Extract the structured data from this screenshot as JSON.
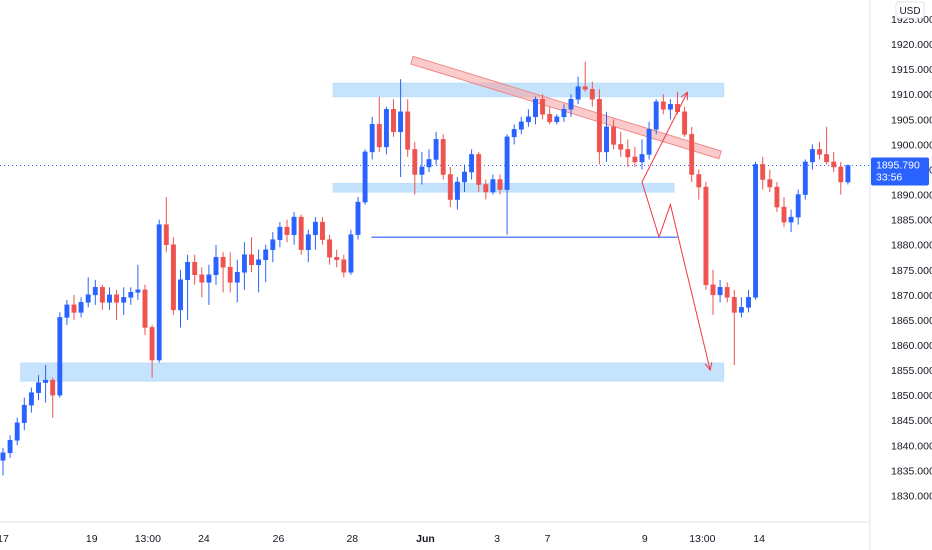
{
  "chart_data": {
    "type": "candlestick",
    "currency_label": "USD",
    "top_partial_label": "1925.000",
    "ylim": [
      1825.5,
      1926.8
    ],
    "price_ticks": [
      1830,
      1835,
      1840,
      1845,
      1850,
      1855,
      1860,
      1865,
      1870,
      1875,
      1880,
      1885,
      1890,
      1895,
      1900,
      1905,
      1910,
      1915,
      1920
    ],
    "price_tick_labels": [
      "1830.000",
      "1835.000",
      "1840.000",
      "1845.000",
      "1850.000",
      "1855.000",
      "1860.000",
      "1865.000",
      "1870.000",
      "1875.000",
      "1880.000",
      "1885.000",
      "1890.000",
      "1895.000",
      "1900.000",
      "1905.000",
      "1910.000",
      "1915.000",
      "1920.000"
    ],
    "x_ticks": [
      {
        "label": "17",
        "i": 0,
        "bold": false
      },
      {
        "label": "19",
        "i": 12.5,
        "bold": false
      },
      {
        "label": "13:00",
        "i": 20.4,
        "bold": false
      },
      {
        "label": "24",
        "i": 28.3,
        "bold": false
      },
      {
        "label": "26",
        "i": 38.8,
        "bold": false
      },
      {
        "label": "28",
        "i": 49.2,
        "bold": false
      },
      {
        "label": "Jun",
        "i": 59.5,
        "bold": true
      },
      {
        "label": "3",
        "i": 69.6,
        "bold": false
      },
      {
        "label": "7",
        "i": 76.7,
        "bold": false
      },
      {
        "label": "9",
        "i": 90.4,
        "bold": false
      },
      {
        "label": "13:00",
        "i": 98.5,
        "bold": false
      },
      {
        "label": "14",
        "i": 106.5,
        "bold": false
      }
    ],
    "current_price": {
      "value": 1895.79,
      "label": "1895.790",
      "countdown": "33:56"
    },
    "colors": {
      "up": "#2962ff",
      "down": "#ef5350",
      "zone": "#bbdefb",
      "trend": "#f7a1a1",
      "tag": "#2962ff",
      "arrow": "#f23645"
    },
    "candles": [
      [
        1837.0,
        1839.5,
        1834.0,
        1838.5
      ],
      [
        1838.5,
        1842.0,
        1837.5,
        1841.0
      ],
      [
        1841.0,
        1845.5,
        1840.0,
        1844.5
      ],
      [
        1844.5,
        1849.5,
        1843.0,
        1848.0
      ],
      [
        1848.0,
        1851.5,
        1846.5,
        1850.5
      ],
      [
        1850.5,
        1854.0,
        1849.0,
        1852.5
      ],
      [
        1852.5,
        1856.0,
        1848.5,
        1853.0
      ],
      [
        1853.0,
        1853.5,
        1845.5,
        1850.0
      ],
      [
        1850.0,
        1866.5,
        1849.5,
        1865.5
      ],
      [
        1865.5,
        1869.0,
        1864.0,
        1868.0
      ],
      [
        1868.0,
        1870.0,
        1865.0,
        1866.5
      ],
      [
        1866.5,
        1869.5,
        1865.5,
        1868.5
      ],
      [
        1868.5,
        1873.5,
        1867.5,
        1870.0
      ],
      [
        1870.0,
        1873.0,
        1868.0,
        1871.5
      ],
      [
        1871.5,
        1872.0,
        1867.0,
        1868.5
      ],
      [
        1868.5,
        1871.5,
        1867.0,
        1870.0
      ],
      [
        1870.0,
        1871.0,
        1865.0,
        1868.5
      ],
      [
        1868.5,
        1871.5,
        1866.0,
        1869.5
      ],
      [
        1869.5,
        1871.5,
        1868.0,
        1870.5
      ],
      [
        1870.5,
        1876.0,
        1869.0,
        1871.0
      ],
      [
        1871.0,
        1872.0,
        1862.0,
        1863.5
      ],
      [
        1863.5,
        1864.0,
        1853.5,
        1857.0
      ],
      [
        1857.0,
        1885.0,
        1856.5,
        1884.0
      ],
      [
        1884.0,
        1889.5,
        1878.5,
        1880.0
      ],
      [
        1880.0,
        1881.5,
        1866.0,
        1867.0
      ],
      [
        1867.0,
        1875.0,
        1863.5,
        1873.0
      ],
      [
        1873.0,
        1878.0,
        1865.0,
        1876.5
      ],
      [
        1876.5,
        1878.0,
        1872.0,
        1874.0
      ],
      [
        1874.0,
        1875.5,
        1869.5,
        1872.5
      ],
      [
        1872.5,
        1876.0,
        1868.0,
        1874.0
      ],
      [
        1874.0,
        1880.0,
        1872.0,
        1877.5
      ],
      [
        1877.5,
        1878.5,
        1870.5,
        1875.5
      ],
      [
        1875.5,
        1878.5,
        1870.5,
        1872.5
      ],
      [
        1872.5,
        1877.0,
        1868.5,
        1874.5
      ],
      [
        1874.5,
        1880.5,
        1871.0,
        1878.0
      ],
      [
        1878.0,
        1881.5,
        1874.5,
        1876.0
      ],
      [
        1876.0,
        1879.0,
        1870.5,
        1877.0
      ],
      [
        1877.0,
        1880.0,
        1872.5,
        1879.0
      ],
      [
        1879.0,
        1882.5,
        1876.5,
        1881.0
      ],
      [
        1881.0,
        1884.5,
        1879.5,
        1883.5
      ],
      [
        1883.5,
        1885.0,
        1880.5,
        1882.0
      ],
      [
        1882.0,
        1886.5,
        1880.0,
        1885.5
      ],
      [
        1885.5,
        1886.0,
        1878.0,
        1879.0
      ],
      [
        1879.0,
        1883.0,
        1876.5,
        1882.0
      ],
      [
        1882.0,
        1885.5,
        1879.0,
        1884.5
      ],
      [
        1884.5,
        1885.5,
        1880.0,
        1881.0
      ],
      [
        1881.0,
        1882.0,
        1876.0,
        1877.5
      ],
      [
        1877.5,
        1879.0,
        1875.5,
        1877.0
      ],
      [
        1877.0,
        1878.0,
        1873.5,
        1874.5
      ],
      [
        1874.5,
        1883.0,
        1874.0,
        1882.0
      ],
      [
        1882.0,
        1889.5,
        1881.0,
        1888.5
      ],
      [
        1888.5,
        1899.0,
        1888.0,
        1898.5
      ],
      [
        1898.5,
        1905.5,
        1897.0,
        1904.0
      ],
      [
        1904.0,
        1909.5,
        1898.5,
        1899.5
      ],
      [
        1899.5,
        1907.5,
        1898.0,
        1907.0
      ],
      [
        1907.0,
        1909.0,
        1901.5,
        1902.5
      ],
      [
        1902.5,
        1913.0,
        1893.5,
        1906.5
      ],
      [
        1906.5,
        1909.0,
        1897.5,
        1899.0
      ],
      [
        1899.0,
        1900.5,
        1890.0,
        1894.0
      ],
      [
        1894.0,
        1898.5,
        1892.0,
        1895.5
      ],
      [
        1895.5,
        1899.0,
        1894.5,
        1897.0
      ],
      [
        1897.0,
        1902.5,
        1896.0,
        1901.0
      ],
      [
        1901.0,
        1902.0,
        1893.0,
        1894.0
      ],
      [
        1894.0,
        1895.5,
        1887.5,
        1889.0
      ],
      [
        1889.0,
        1893.5,
        1887.0,
        1892.5
      ],
      [
        1892.5,
        1896.0,
        1890.5,
        1894.5
      ],
      [
        1894.5,
        1899.0,
        1893.0,
        1898.0
      ],
      [
        1898.0,
        1898.5,
        1890.5,
        1892.0
      ],
      [
        1892.0,
        1893.0,
        1889.0,
        1890.5
      ],
      [
        1890.5,
        1894.0,
        1890.0,
        1893.0
      ],
      [
        1893.0,
        1894.0,
        1890.0,
        1891.0
      ],
      [
        1891.0,
        1902.0,
        1882.0,
        1901.5
      ],
      [
        1901.5,
        1904.0,
        1900.0,
        1903.0
      ],
      [
        1903.0,
        1905.5,
        1902.0,
        1904.5
      ],
      [
        1904.5,
        1907.0,
        1903.5,
        1905.5
      ],
      [
        1905.5,
        1909.5,
        1904.0,
        1909.0
      ],
      [
        1909.0,
        1910.0,
        1905.0,
        1906.0
      ],
      [
        1906.0,
        1907.5,
        1904.0,
        1904.5
      ],
      [
        1904.5,
        1906.0,
        1904.0,
        1905.5
      ],
      [
        1905.5,
        1908.0,
        1904.5,
        1907.0
      ],
      [
        1907.0,
        1910.0,
        1905.5,
        1909.0
      ],
      [
        1909.0,
        1913.5,
        1908.0,
        1911.5
      ],
      [
        1911.5,
        1916.5,
        1910.5,
        1911.0
      ],
      [
        1911.0,
        1912.5,
        1907.5,
        1909.0
      ],
      [
        1909.0,
        1911.0,
        1896.0,
        1898.5
      ],
      [
        1898.5,
        1906.5,
        1896.5,
        1903.5
      ],
      [
        1903.5,
        1905.0,
        1899.0,
        1900.0
      ],
      [
        1900.0,
        1902.5,
        1897.5,
        1899.0
      ],
      [
        1899.0,
        1901.0,
        1895.5,
        1897.5
      ],
      [
        1897.5,
        1899.5,
        1895.5,
        1896.5
      ],
      [
        1896.5,
        1901.0,
        1895.0,
        1898.0
      ],
      [
        1898.0,
        1904.5,
        1897.0,
        1903.0
      ],
      [
        1903.0,
        1909.0,
        1902.0,
        1908.5
      ],
      [
        1908.5,
        1910.0,
        1906.0,
        1907.0
      ],
      [
        1907.0,
        1909.0,
        1905.0,
        1908.0
      ],
      [
        1908.0,
        1910.5,
        1906.0,
        1906.5
      ],
      [
        1906.5,
        1907.5,
        1901.5,
        1902.0
      ],
      [
        1902.0,
        1903.5,
        1892.5,
        1894.0
      ],
      [
        1894.0,
        1895.0,
        1889.0,
        1891.5
      ],
      [
        1891.5,
        1892.5,
        1871.0,
        1872.0
      ],
      [
        1872.0,
        1875.0,
        1866.0,
        1870.0
      ],
      [
        1870.0,
        1873.0,
        1868.5,
        1871.5
      ],
      [
        1871.5,
        1872.5,
        1868.5,
        1869.5
      ],
      [
        1869.5,
        1871.0,
        1856.0,
        1866.5
      ],
      [
        1866.5,
        1869.5,
        1865.5,
        1867.5
      ],
      [
        1867.5,
        1871.0,
        1866.5,
        1869.5
      ],
      [
        1869.5,
        1896.5,
        1869.0,
        1896.0
      ],
      [
        1896.0,
        1897.5,
        1891.0,
        1893.0
      ],
      [
        1893.0,
        1895.0,
        1890.5,
        1891.5
      ],
      [
        1891.5,
        1892.5,
        1886.5,
        1887.5
      ],
      [
        1887.5,
        1889.5,
        1883.5,
        1884.5
      ],
      [
        1884.5,
        1887.0,
        1882.5,
        1885.5
      ],
      [
        1885.5,
        1891.0,
        1884.0,
        1890.0
      ],
      [
        1890.0,
        1897.0,
        1889.0,
        1896.5
      ],
      [
        1896.5,
        1900.0,
        1895.0,
        1899.0
      ],
      [
        1899.0,
        1900.5,
        1897.0,
        1898.0
      ],
      [
        1898.0,
        1903.5,
        1896.0,
        1896.5
      ],
      [
        1896.5,
        1898.5,
        1894.5,
        1895.5
      ],
      [
        1895.5,
        1896.5,
        1890.0,
        1892.5
      ],
      [
        1892.5,
        1896.0,
        1892.0,
        1895.79
      ]
    ],
    "zones": [
      {
        "from_i": 46.5,
        "to_i": 101.5,
        "low": 1909.5,
        "high": 1912.2
      },
      {
        "from_i": 46.5,
        "to_i": 94.5,
        "low": 1890.5,
        "high": 1892.2
      },
      {
        "from_i": 2.5,
        "to_i": 101.5,
        "low": 1852.8,
        "high": 1856.4
      }
    ],
    "support_line": {
      "from_i": 51.9,
      "to_i": 95.0,
      "price": 1881.5
    },
    "trendline": {
      "i1": 57.6,
      "p1": 1916.8,
      "i2": 101.0,
      "p2": 1897.9,
      "width_price": 1.6
    },
    "projections": [
      {
        "points": [
          [
            90.0,
            1892.5
          ],
          [
            96.4,
            1910.4
          ]
        ],
        "head": true
      },
      {
        "points": [
          [
            90.0,
            1892.5
          ],
          [
            92.4,
            1881.5
          ],
          [
            94.0,
            1888.0
          ],
          [
            99.6,
            1855.0
          ]
        ],
        "head": true
      }
    ]
  }
}
